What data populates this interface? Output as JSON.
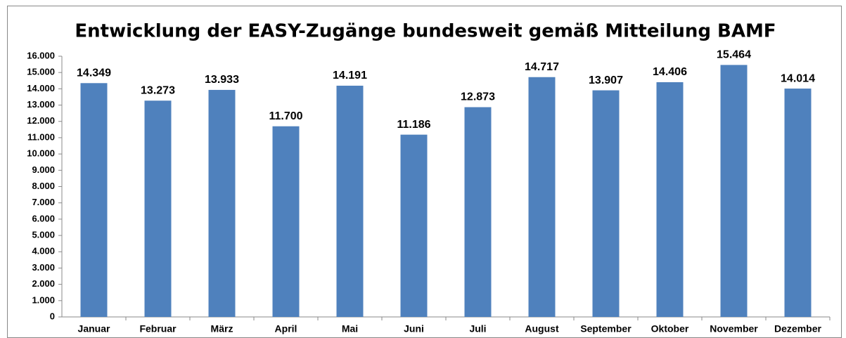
{
  "chart_data": {
    "type": "bar",
    "title": "Entwicklung der EASY-Zugänge bundesweit gemäß Mitteilung BAMF",
    "categories": [
      "Januar",
      "Februar",
      "März",
      "April",
      "Mai",
      "Juni",
      "Juli",
      "August",
      "September",
      "Oktober",
      "November",
      "Dezember"
    ],
    "values": [
      14349,
      13273,
      13933,
      11700,
      14191,
      11186,
      12873,
      14717,
      13907,
      14406,
      15464,
      14014
    ],
    "value_labels": [
      "14.349",
      "13.273",
      "13.933",
      "11.700",
      "14.191",
      "11.186",
      "12.873",
      "14.717",
      "13.907",
      "14.406",
      "15.464",
      "14.014"
    ],
    "color": "#4f81bd",
    "ylim": [
      0,
      16000
    ],
    "yticks": [
      0,
      {
        "value": 1000,
        "label": "1.000"
      },
      {
        "value": 2000,
        "label": "2.000"
      },
      {
        "value": 3000,
        "label": "3.000"
      },
      {
        "value": 4000,
        "label": "4.000"
      },
      {
        "value": 5000,
        "label": "5.000"
      },
      {
        "value": 6000,
        "label": "6.000"
      },
      {
        "value": 7000,
        "label": "7.000"
      },
      {
        "value": 8000,
        "label": "8.000"
      },
      {
        "value": 9000,
        "label": "9.000"
      },
      {
        "value": 10000,
        "label": "10.000"
      },
      {
        "value": 11000,
        "label": "11.000"
      },
      {
        "value": 12000,
        "label": "12.000"
      },
      {
        "value": 13000,
        "label": "13.000"
      },
      {
        "value": 14000,
        "label": "14.000"
      },
      {
        "value": 15000,
        "label": "15.000"
      },
      {
        "value": 16000,
        "label": "16.000"
      }
    ],
    "grid": false
  }
}
